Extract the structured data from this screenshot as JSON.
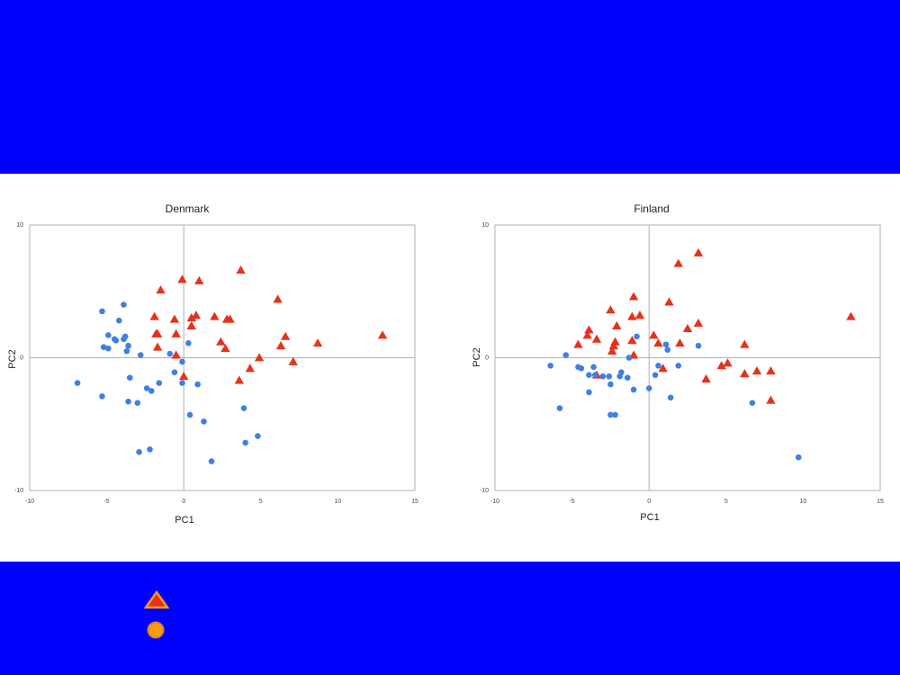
{
  "colors": {
    "band": "#0000ff",
    "panel": "#ffffff",
    "triangle": "#e8311a",
    "circle": "#3f7fe6",
    "legend_triangle_fill": "#e8311a",
    "legend_triangle_stroke": "#f39c12",
    "legend_circle_fill": "#f39c12",
    "legend_circle_stroke": "#e67e22",
    "axis_zero": "#b0b0b0",
    "frame": "#b0b0b0"
  },
  "chart_data": [
    {
      "type": "scatter",
      "title": "Denmark",
      "xlabel": "PC1",
      "ylabel": "PC2",
      "xlim": [
        -10,
        15
      ],
      "ylim": [
        -10,
        10
      ],
      "xticks": [
        -10,
        -5,
        0,
        5,
        10,
        15
      ],
      "yticks": [
        -10,
        0,
        10
      ],
      "tick_labels_x": [
        "-10",
        "-5",
        "0",
        "5",
        "10",
        "15"
      ],
      "tick_labels_y": [
        "-10",
        "0",
        "10"
      ],
      "grid": false,
      "series": [
        {
          "marker": "triangle",
          "points": [
            [
              -0.1,
              5.9
            ],
            [
              1.0,
              5.8
            ],
            [
              3.7,
              6.6
            ],
            [
              -1.5,
              5.1
            ],
            [
              6.1,
              4.4
            ],
            [
              -1.9,
              3.1
            ],
            [
              -0.6,
              2.9
            ],
            [
              0.5,
              3.0
            ],
            [
              0.8,
              3.2
            ],
            [
              2.0,
              3.1
            ],
            [
              2.8,
              2.9
            ],
            [
              3.0,
              2.9
            ],
            [
              0.5,
              2.4
            ],
            [
              -1.7,
              1.8
            ],
            [
              -1.8,
              1.8
            ],
            [
              -0.5,
              1.8
            ],
            [
              6.6,
              1.6
            ],
            [
              12.9,
              1.7
            ],
            [
              2.4,
              1.2
            ],
            [
              8.7,
              1.1
            ],
            [
              6.3,
              0.9
            ],
            [
              -1.7,
              0.8
            ],
            [
              2.7,
              0.7
            ],
            [
              -0.5,
              0.2
            ],
            [
              4.9,
              0.0
            ],
            [
              7.1,
              -0.3
            ],
            [
              4.3,
              -0.8
            ],
            [
              0.0,
              -1.4
            ],
            [
              3.6,
              -1.7
            ]
          ]
        },
        {
          "marker": "circle",
          "points": [
            [
              -3.9,
              4.0
            ],
            [
              -5.3,
              3.5
            ],
            [
              -4.2,
              2.8
            ],
            [
              -4.9,
              1.7
            ],
            [
              -3.8,
              1.6
            ],
            [
              -4.5,
              1.4
            ],
            [
              -3.9,
              1.4
            ],
            [
              -4.4,
              1.3
            ],
            [
              -3.6,
              0.9
            ],
            [
              -5.2,
              0.8
            ],
            [
              -4.9,
              0.7
            ],
            [
              -3.7,
              0.5
            ],
            [
              0.3,
              1.1
            ],
            [
              -2.8,
              0.2
            ],
            [
              -0.9,
              0.3
            ],
            [
              -0.1,
              -0.3
            ],
            [
              -0.6,
              -1.1
            ],
            [
              -3.5,
              -1.5
            ],
            [
              -6.9,
              -1.9
            ],
            [
              -1.6,
              -1.9
            ],
            [
              -0.1,
              -1.9
            ],
            [
              0.9,
              -2.0
            ],
            [
              -2.4,
              -2.3
            ],
            [
              -2.1,
              -2.5
            ],
            [
              -5.3,
              -2.9
            ],
            [
              -3.6,
              -3.3
            ],
            [
              -3.0,
              -3.4
            ],
            [
              3.9,
              -3.8
            ],
            [
              0.4,
              -4.3
            ],
            [
              1.3,
              -4.8
            ],
            [
              4.8,
              -5.9
            ],
            [
              4.0,
              -6.4
            ],
            [
              -2.2,
              -6.9
            ],
            [
              -2.9,
              -7.1
            ],
            [
              1.8,
              -7.8
            ]
          ]
        }
      ]
    },
    {
      "type": "scatter",
      "title": "Finland",
      "xlabel": "PC1",
      "ylabel": "PC2",
      "xlim": [
        -10,
        15
      ],
      "ylim": [
        -10,
        10
      ],
      "xticks": [
        -10,
        -5,
        0,
        5,
        10,
        15
      ],
      "yticks": [
        -10,
        0,
        10
      ],
      "tick_labels_x": [
        "-10",
        "-5",
        "0",
        "5",
        "10",
        "15"
      ],
      "tick_labels_y": [
        "-10",
        "0",
        "10"
      ],
      "grid": false,
      "series": [
        {
          "marker": "triangle",
          "points": [
            [
              3.2,
              7.9
            ],
            [
              1.9,
              7.1
            ],
            [
              -1.0,
              4.6
            ],
            [
              1.3,
              4.2
            ],
            [
              -2.5,
              3.6
            ],
            [
              -0.6,
              3.2
            ],
            [
              -1.1,
              3.1
            ],
            [
              13.1,
              3.1
            ],
            [
              3.2,
              2.6
            ],
            [
              -2.1,
              2.4
            ],
            [
              2.5,
              2.2
            ],
            [
              -3.9,
              2.1
            ],
            [
              -4.0,
              1.7
            ],
            [
              0.3,
              1.7
            ],
            [
              -3.4,
              1.4
            ],
            [
              -1.1,
              1.3
            ],
            [
              -2.2,
              1.2
            ],
            [
              2.0,
              1.1
            ],
            [
              0.6,
              1.1
            ],
            [
              -4.6,
              1.0
            ],
            [
              6.2,
              1.0
            ],
            [
              -2.3,
              0.9
            ],
            [
              -2.4,
              0.5
            ],
            [
              -1.0,
              0.2
            ],
            [
              5.1,
              -0.4
            ],
            [
              4.7,
              -0.6
            ],
            [
              0.9,
              -0.8
            ],
            [
              7.0,
              -1.0
            ],
            [
              7.9,
              -1.0
            ],
            [
              6.2,
              -1.2
            ],
            [
              -3.4,
              -1.3
            ],
            [
              3.7,
              -1.6
            ],
            [
              7.9,
              -3.2
            ]
          ]
        },
        {
          "marker": "circle",
          "points": [
            [
              -0.8,
              1.6
            ],
            [
              1.1,
              1.0
            ],
            [
              3.2,
              0.9
            ],
            [
              1.2,
              0.6
            ],
            [
              -5.4,
              0.2
            ],
            [
              -1.3,
              0.0
            ],
            [
              -6.4,
              -0.6
            ],
            [
              0.6,
              -0.6
            ],
            [
              1.9,
              -0.6
            ],
            [
              -3.6,
              -0.7
            ],
            [
              -4.6,
              -0.7
            ],
            [
              -4.4,
              -0.8
            ],
            [
              -1.8,
              -1.1
            ],
            [
              -3.9,
              -1.3
            ],
            [
              0.4,
              -1.3
            ],
            [
              -3.5,
              -1.3
            ],
            [
              -1.9,
              -1.4
            ],
            [
              -3.0,
              -1.4
            ],
            [
              -2.6,
              -1.4
            ],
            [
              -1.4,
              -1.5
            ],
            [
              -2.5,
              -2.0
            ],
            [
              -1.0,
              -2.4
            ],
            [
              0.0,
              -2.3
            ],
            [
              -3.9,
              -2.6
            ],
            [
              1.4,
              -3.0
            ],
            [
              6.7,
              -3.4
            ],
            [
              -5.8,
              -3.8
            ],
            [
              -2.2,
              -4.3
            ],
            [
              -2.5,
              -4.3
            ],
            [
              9.7,
              -7.5
            ]
          ]
        }
      ]
    }
  ]
}
